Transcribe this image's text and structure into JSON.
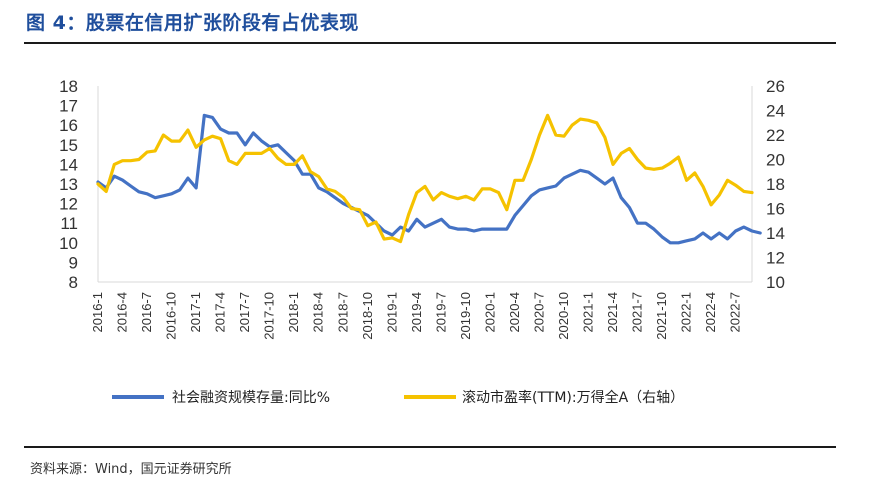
{
  "header": {
    "title": "图 4：股票在信用扩张阶段有占优表现"
  },
  "footer": {
    "source": "资料来源：Wind，国元证券研究所"
  },
  "colors": {
    "series1": "#4472c4",
    "series2": "#f5c200"
  },
  "chart_data": {
    "type": "line",
    "title": "",
    "legend_position": "bottom",
    "grid": false,
    "y_left": {
      "min": 8,
      "max": 18,
      "step": 1
    },
    "y_right": {
      "min": 10,
      "max": 26,
      "step": 2
    },
    "x_range": [
      "2016-01",
      "2022-09"
    ],
    "x_ticks": [
      "2016-1",
      "2016-4",
      "2016-7",
      "2016-10",
      "2017-1",
      "2017-4",
      "2017-7",
      "2017-10",
      "2018-1",
      "2018-4",
      "2018-7",
      "2018-10",
      "2019-1",
      "2019-4",
      "2019-7",
      "2019-10",
      "2020-1",
      "2020-4",
      "2020-7",
      "2020-10",
      "2021-1",
      "2021-4",
      "2021-7",
      "2021-10",
      "2022-1",
      "2022-4",
      "2022-7"
    ],
    "series": [
      {
        "name": "社会融资规模存量:同比%",
        "axis": "left",
        "color": "#4472c4",
        "points": [
          [
            "2016-01",
            13.1
          ],
          [
            "2016-02",
            12.8
          ],
          [
            "2016-03",
            13.4
          ],
          [
            "2016-04",
            13.2
          ],
          [
            "2016-05",
            12.9
          ],
          [
            "2016-06",
            12.6
          ],
          [
            "2016-07",
            12.5
          ],
          [
            "2016-08",
            12.3
          ],
          [
            "2016-09",
            12.4
          ],
          [
            "2016-10",
            12.5
          ],
          [
            "2016-11",
            12.7
          ],
          [
            "2016-12",
            13.3
          ],
          [
            "2017-01",
            12.8
          ],
          [
            "2017-02",
            16.5
          ],
          [
            "2017-03",
            16.4
          ],
          [
            "2017-04",
            15.8
          ],
          [
            "2017-05",
            15.6
          ],
          [
            "2017-06",
            15.6
          ],
          [
            "2017-07",
            15.0
          ],
          [
            "2017-08",
            15.6
          ],
          [
            "2017-09",
            15.2
          ],
          [
            "2017-10",
            14.9
          ],
          [
            "2017-11",
            15.0
          ],
          [
            "2017-12",
            14.6
          ],
          [
            "2018-01",
            14.2
          ],
          [
            "2018-02",
            13.5
          ],
          [
            "2018-03",
            13.5
          ],
          [
            "2018-04",
            12.8
          ],
          [
            "2018-05",
            12.6
          ],
          [
            "2018-06",
            12.3
          ],
          [
            "2018-07",
            12.0
          ],
          [
            "2018-08",
            11.8
          ],
          [
            "2018-09",
            11.6
          ],
          [
            "2018-10",
            11.4
          ],
          [
            "2018-11",
            11.0
          ],
          [
            "2018-12",
            10.6
          ],
          [
            "2019-01",
            10.4
          ],
          [
            "2019-02",
            10.8
          ],
          [
            "2019-03",
            10.6
          ],
          [
            "2019-04",
            11.2
          ],
          [
            "2019-05",
            10.8
          ],
          [
            "2019-06",
            11.0
          ],
          [
            "2019-07",
            11.2
          ],
          [
            "2019-08",
            10.8
          ],
          [
            "2019-09",
            10.7
          ],
          [
            "2019-10",
            10.7
          ],
          [
            "2019-11",
            10.6
          ],
          [
            "2019-12",
            10.7
          ],
          [
            "2020-01",
            10.7
          ],
          [
            "2020-02",
            10.7
          ],
          [
            "2020-03",
            10.7
          ],
          [
            "2020-04",
            11.4
          ],
          [
            "2020-05",
            11.9
          ],
          [
            "2020-06",
            12.4
          ],
          [
            "2020-07",
            12.7
          ],
          [
            "2020-08",
            12.8
          ],
          [
            "2020-09",
            12.9
          ],
          [
            "2020-10",
            13.3
          ],
          [
            "2020-11",
            13.5
          ],
          [
            "2020-12",
            13.7
          ],
          [
            "2021-01",
            13.6
          ],
          [
            "2021-02",
            13.3
          ],
          [
            "2021-03",
            13.0
          ],
          [
            "2021-04",
            13.3
          ],
          [
            "2021-05",
            12.3
          ],
          [
            "2021-06",
            11.8
          ],
          [
            "2021-07",
            11.0
          ],
          [
            "2021-08",
            11.0
          ],
          [
            "2021-09",
            10.7
          ],
          [
            "2021-10",
            10.3
          ],
          [
            "2021-11",
            10.0
          ],
          [
            "2021-12",
            10.0
          ],
          [
            "2022-01",
            10.1
          ],
          [
            "2022-02",
            10.2
          ],
          [
            "2022-03",
            10.5
          ],
          [
            "2022-04",
            10.2
          ],
          [
            "2022-05",
            10.5
          ],
          [
            "2022-06",
            10.2
          ],
          [
            "2022-07",
            10.6
          ],
          [
            "2022-08",
            10.8
          ],
          [
            "2022-09",
            10.6
          ],
          [
            "2022-10",
            10.5
          ]
        ]
      },
      {
        "name": "滚动市盈率(TTM):万得全A（右轴）",
        "axis": "right",
        "color": "#f5c200",
        "points": [
          [
            "2016-01",
            18.0
          ],
          [
            "2016-02",
            17.4
          ],
          [
            "2016-03",
            19.6
          ],
          [
            "2016-04",
            19.9
          ],
          [
            "2016-05",
            19.9
          ],
          [
            "2016-06",
            20.0
          ],
          [
            "2016-07",
            20.6
          ],
          [
            "2016-08",
            20.7
          ],
          [
            "2016-09",
            22.0
          ],
          [
            "2016-10",
            21.5
          ],
          [
            "2016-11",
            21.5
          ],
          [
            "2016-12",
            22.4
          ],
          [
            "2017-01",
            21.0
          ],
          [
            "2017-02",
            21.6
          ],
          [
            "2017-03",
            21.9
          ],
          [
            "2017-04",
            21.7
          ],
          [
            "2017-05",
            19.9
          ],
          [
            "2017-06",
            19.6
          ],
          [
            "2017-07",
            20.5
          ],
          [
            "2017-08",
            20.5
          ],
          [
            "2017-09",
            20.5
          ],
          [
            "2017-10",
            20.9
          ],
          [
            "2017-11",
            20.1
          ],
          [
            "2017-12",
            19.6
          ],
          [
            "2018-01",
            19.6
          ],
          [
            "2018-02",
            20.3
          ],
          [
            "2018-03",
            19.0
          ],
          [
            "2018-04",
            18.6
          ],
          [
            "2018-05",
            17.6
          ],
          [
            "2018-06",
            17.4
          ],
          [
            "2018-07",
            16.9
          ],
          [
            "2018-08",
            16.0
          ],
          [
            "2018-09",
            15.9
          ],
          [
            "2018-10",
            14.6
          ],
          [
            "2018-11",
            14.9
          ],
          [
            "2018-12",
            13.5
          ],
          [
            "2019-01",
            13.6
          ],
          [
            "2019-02",
            13.3
          ],
          [
            "2019-03",
            15.5
          ],
          [
            "2019-04",
            17.3
          ],
          [
            "2019-05",
            17.8
          ],
          [
            "2019-06",
            16.7
          ],
          [
            "2019-07",
            17.3
          ],
          [
            "2019-08",
            17.0
          ],
          [
            "2019-09",
            16.8
          ],
          [
            "2019-10",
            17.0
          ],
          [
            "2019-11",
            16.7
          ],
          [
            "2019-12",
            17.6
          ],
          [
            "2020-01",
            17.6
          ],
          [
            "2020-02",
            17.3
          ],
          [
            "2020-03",
            15.9
          ],
          [
            "2020-04",
            18.3
          ],
          [
            "2020-05",
            18.3
          ],
          [
            "2020-06",
            20.0
          ],
          [
            "2020-07",
            22.0
          ],
          [
            "2020-08",
            23.6
          ],
          [
            "2020-09",
            22.0
          ],
          [
            "2020-10",
            21.9
          ],
          [
            "2020-11",
            22.8
          ],
          [
            "2020-12",
            23.3
          ],
          [
            "2021-01",
            23.2
          ],
          [
            "2021-02",
            23.0
          ],
          [
            "2021-03",
            21.8
          ],
          [
            "2021-04",
            19.6
          ],
          [
            "2021-05",
            20.5
          ],
          [
            "2021-06",
            20.9
          ],
          [
            "2021-07",
            20.0
          ],
          [
            "2021-08",
            19.3
          ],
          [
            "2021-09",
            19.2
          ],
          [
            "2021-10",
            19.3
          ],
          [
            "2021-11",
            19.7
          ],
          [
            "2021-12",
            20.2
          ],
          [
            "2022-01",
            18.3
          ],
          [
            "2022-02",
            18.9
          ],
          [
            "2022-03",
            17.8
          ],
          [
            "2022-04",
            16.3
          ],
          [
            "2022-05",
            17.1
          ],
          [
            "2022-06",
            18.3
          ],
          [
            "2022-07",
            17.9
          ],
          [
            "2022-08",
            17.4
          ],
          [
            "2022-09",
            17.3
          ]
        ]
      }
    ]
  }
}
